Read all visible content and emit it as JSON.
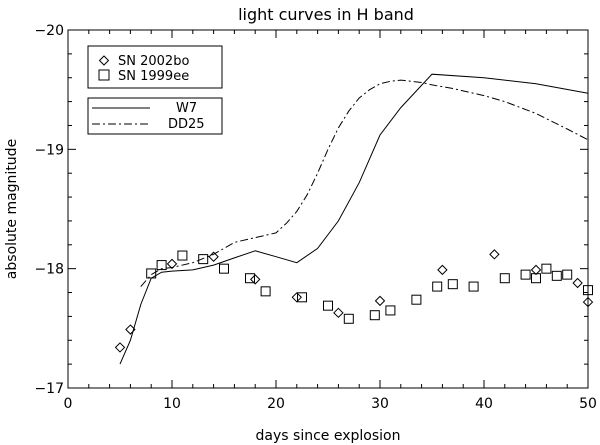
{
  "chart_data": {
    "type": "line",
    "title": "light curves in H band",
    "xlabel": "days since explosion",
    "ylabel": "absolute magnitude",
    "xlim": [
      0,
      50
    ],
    "ylim": [
      -17,
      -20
    ],
    "y_inverted": true,
    "x_ticks": [
      0,
      10,
      20,
      30,
      40,
      50
    ],
    "y_ticks": [
      -17,
      -18,
      -19,
      -20
    ],
    "x_minor_step": 2,
    "y_minor_step": 0.2,
    "grid": false,
    "legend_placement": "top-left",
    "colors": {
      "foreground": "#000000",
      "background": "#ffffff"
    },
    "scatter_series": [
      {
        "name": "SN 2002bo",
        "marker": "diamond",
        "x": [
          5.0,
          6.0,
          10.0,
          14.0,
          18.0,
          22.0,
          26.0,
          30.0,
          36.0,
          41.0,
          45.0,
          49.0,
          50.0
        ],
        "y": [
          -17.34,
          -17.49,
          -18.04,
          -18.1,
          -17.91,
          -17.76,
          -17.63,
          -17.73,
          -17.99,
          -18.12,
          -17.99,
          -17.88,
          -17.72
        ]
      },
      {
        "name": "SN 1999ee",
        "marker": "square",
        "x": [
          8.0,
          9.0,
          11.0,
          13.0,
          15.0,
          17.5,
          19.0,
          22.5,
          25.0,
          27.0,
          29.5,
          31.0,
          33.5,
          35.5,
          37.0,
          39.0,
          42.0,
          44.0,
          45.0,
          46.0,
          47.0,
          48.0,
          50.0
        ],
        "y": [
          -17.96,
          -18.03,
          -18.11,
          -18.08,
          -18.0,
          -17.92,
          -17.81,
          -17.76,
          -17.69,
          -17.58,
          -17.61,
          -17.65,
          -17.74,
          -17.85,
          -17.87,
          -17.85,
          -17.92,
          -17.95,
          -17.92,
          -18.0,
          -17.94,
          -17.95,
          -17.82
        ]
      }
    ],
    "line_series": [
      {
        "name": "W7",
        "style": "solid",
        "x": [
          5,
          6,
          7,
          8,
          9,
          10,
          12,
          14,
          16,
          18,
          20,
          22,
          24,
          26,
          28,
          30,
          32,
          35,
          40,
          45,
          50
        ],
        "y": [
          -17.2,
          -17.4,
          -17.7,
          -17.92,
          -17.97,
          -17.98,
          -17.99,
          -18.03,
          -18.09,
          -18.15,
          -18.1,
          -18.05,
          -18.17,
          -18.4,
          -18.72,
          -19.12,
          -19.35,
          -19.63,
          -19.6,
          -19.55,
          -19.47
        ]
      },
      {
        "name": "DD25",
        "style": "dash-dot",
        "x": [
          7,
          8,
          9,
          10,
          12,
          14,
          16,
          18,
          20,
          21,
          22,
          23,
          24,
          25,
          26,
          27,
          28,
          29,
          30,
          31,
          32,
          33,
          34,
          35,
          37,
          40,
          42,
          45,
          48,
          50
        ],
        "y": [
          -17.85,
          -17.95,
          -18.0,
          -18.01,
          -18.05,
          -18.12,
          -18.22,
          -18.26,
          -18.3,
          -18.38,
          -18.48,
          -18.62,
          -18.8,
          -19.0,
          -19.18,
          -19.32,
          -19.43,
          -19.5,
          -19.55,
          -19.57,
          -19.58,
          -19.57,
          -19.56,
          -19.54,
          -19.51,
          -19.45,
          -19.4,
          -19.3,
          -19.17,
          -19.08
        ]
      }
    ]
  }
}
